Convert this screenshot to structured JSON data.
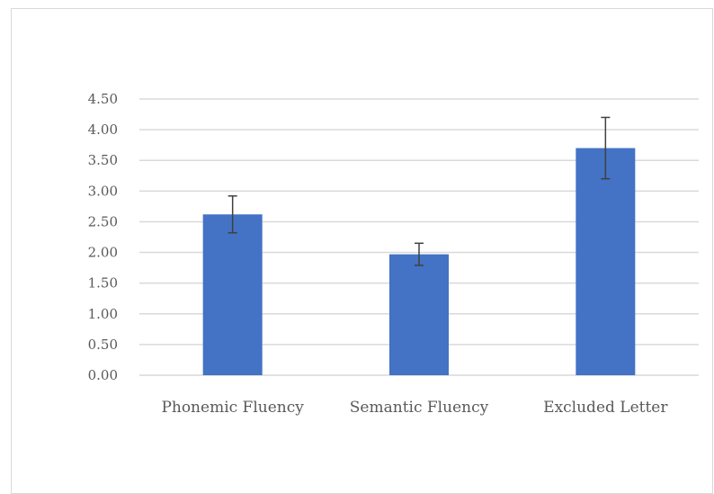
{
  "chart_data": {
    "type": "bar",
    "title": "",
    "xlabel": "",
    "ylabel": "",
    "categories": [
      "Phonemic Fluency",
      "Semantic Fluency",
      "Excluded Letter"
    ],
    "values": [
      2.62,
      1.97,
      3.7
    ],
    "error_low": [
      2.32,
      1.79,
      3.2
    ],
    "error_high": [
      2.92,
      2.15,
      4.2
    ],
    "ylim": [
      0,
      4.5
    ],
    "ytick_step": 0.5,
    "ytick_labels": [
      "0.00",
      "0.50",
      "1.00",
      "1.50",
      "2.00",
      "2.50",
      "3.00",
      "3.50",
      "4.00",
      "4.50"
    ],
    "grid": true,
    "legend": "none",
    "colors": {
      "bar": "#4472c4",
      "gridline": "#d9d9d9",
      "errorbar": "#404040",
      "text": "#595959"
    }
  }
}
